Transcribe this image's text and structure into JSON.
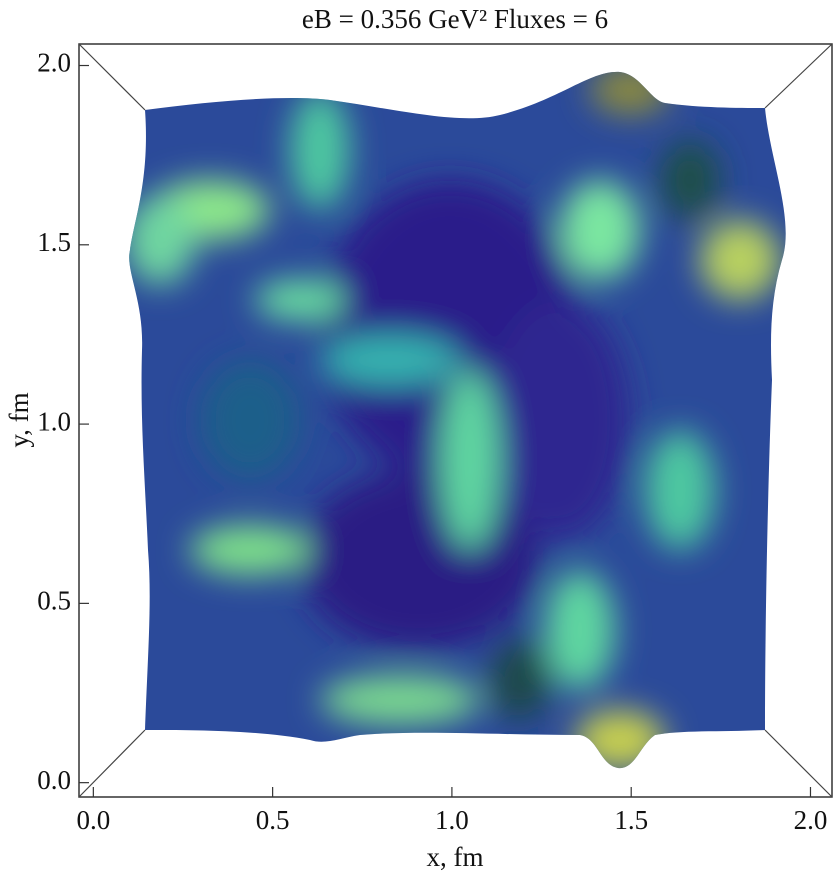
{
  "chart_data": {
    "type": "surface",
    "title": "eB = 0.356 GeV² Fluxes = 6",
    "x_label": "x, fm",
    "y_label": "y, fm",
    "xlim": [
      -0.04,
      2.06
    ],
    "ylim": [
      -0.04,
      2.06
    ],
    "xticks": [
      {
        "value": 0,
        "label": "0.0"
      },
      0.5,
      {
        "value": 1,
        "label": "1.0"
      },
      1.5,
      {
        "value": 2,
        "label": "2.0"
      }
    ],
    "yticks": [
      {
        "value": 0,
        "label": "0.0"
      },
      0.5,
      {
        "value": 1,
        "label": "1.0"
      },
      1.5,
      {
        "value": 2,
        "label": "2.0"
      }
    ]
  }
}
